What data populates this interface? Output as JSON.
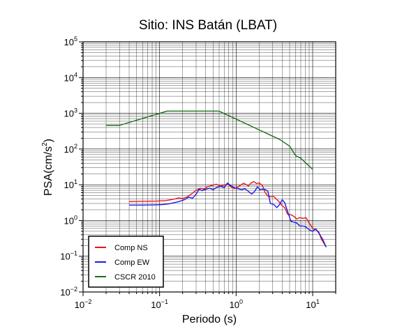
{
  "chart_data": {
    "type": "line",
    "title": "Sitio: INS Batán (LBAT)",
    "xlabel": "Periodo (s)",
    "ylabel_base": "PSA(cm/s",
    "ylabel_exp": "2",
    "ylabel_close": ")",
    "xscale": "log",
    "yscale": "log",
    "xlim": [
      0.01,
      20
    ],
    "ylim": [
      0.01,
      100000
    ],
    "grid": true,
    "legend_position": "bottom-left",
    "x_ticks": [
      {
        "value": 0.01,
        "base": "10",
        "exp": "−2"
      },
      {
        "value": 0.1,
        "base": "10",
        "exp": "−1"
      },
      {
        "value": 1,
        "base": "10",
        "exp": "0"
      },
      {
        "value": 10,
        "base": "10",
        "exp": "1"
      }
    ],
    "y_ticks": [
      {
        "value": 0.01,
        "base": "10",
        "exp": "−2"
      },
      {
        "value": 0.1,
        "base": "10",
        "exp": "−1"
      },
      {
        "value": 1,
        "base": "10",
        "exp": "0"
      },
      {
        "value": 10,
        "base": "10",
        "exp": "1"
      },
      {
        "value": 100,
        "base": "10",
        "exp": "2"
      },
      {
        "value": 1000,
        "base": "10",
        "exp": "3"
      },
      {
        "value": 10000,
        "base": "10",
        "exp": "4"
      },
      {
        "value": 100000,
        "base": "10",
        "exp": "5"
      }
    ],
    "series": [
      {
        "name": "Comp NS",
        "color": "#e8141a",
        "points": [
          [
            0.04,
            3.4
          ],
          [
            0.06,
            3.45
          ],
          [
            0.09,
            3.5
          ],
          [
            0.12,
            3.6
          ],
          [
            0.15,
            3.9
          ],
          [
            0.18,
            4.3
          ],
          [
            0.2,
            4.1
          ],
          [
            0.23,
            4.6
          ],
          [
            0.26,
            5.5
          ],
          [
            0.3,
            7.0
          ],
          [
            0.34,
            8.0
          ],
          [
            0.38,
            7.5
          ],
          [
            0.42,
            8.8
          ],
          [
            0.48,
            9.5
          ],
          [
            0.55,
            10.4
          ],
          [
            0.62,
            9.2
          ],
          [
            0.7,
            9.8
          ],
          [
            0.78,
            10.5
          ],
          [
            0.85,
            8.8
          ],
          [
            0.95,
            7.8
          ],
          [
            1.05,
            8.6
          ],
          [
            1.15,
            9.8
          ],
          [
            1.25,
            11.0
          ],
          [
            1.35,
            10.2
          ],
          [
            1.45,
            9.2
          ],
          [
            1.55,
            11.0
          ],
          [
            1.7,
            12.3
          ],
          [
            1.85,
            10.8
          ],
          [
            2.0,
            11.3
          ],
          [
            2.2,
            9.5
          ],
          [
            2.4,
            6.0
          ],
          [
            2.6,
            4.8
          ],
          [
            2.85,
            4.6
          ],
          [
            3.1,
            4.7
          ],
          [
            3.4,
            3.9
          ],
          [
            3.7,
            3.2
          ],
          [
            4.0,
            2.6
          ],
          [
            4.3,
            2.3
          ],
          [
            4.7,
            1.5
          ],
          [
            5.2,
            1.45
          ],
          [
            5.7,
            1.3
          ],
          [
            6.2,
            1.1
          ],
          [
            6.7,
            1.2
          ],
          [
            7.5,
            1.15
          ],
          [
            8.2,
            1.2
          ],
          [
            9.0,
            0.85
          ],
          [
            10.0,
            0.6
          ],
          [
            11.0,
            0.55
          ],
          [
            12.0,
            0.48
          ],
          [
            13.0,
            0.3
          ],
          [
            15.0,
            0.18
          ]
        ]
      },
      {
        "name": "Comp EW",
        "color": "#1a1ae6",
        "points": [
          [
            0.04,
            2.7
          ],
          [
            0.06,
            2.7
          ],
          [
            0.09,
            2.75
          ],
          [
            0.11,
            2.8
          ],
          [
            0.13,
            2.9
          ],
          [
            0.15,
            3.1
          ],
          [
            0.18,
            3.4
          ],
          [
            0.21,
            3.8
          ],
          [
            0.24,
            4.5
          ],
          [
            0.27,
            4.2
          ],
          [
            0.3,
            5.5
          ],
          [
            0.33,
            7.5
          ],
          [
            0.36,
            6.8
          ],
          [
            0.4,
            7.5
          ],
          [
            0.45,
            8.0
          ],
          [
            0.5,
            7.3
          ],
          [
            0.56,
            8.5
          ],
          [
            0.63,
            9.0
          ],
          [
            0.7,
            8.3
          ],
          [
            0.77,
            11.2
          ],
          [
            0.85,
            9.5
          ],
          [
            0.92,
            8.5
          ],
          [
            1.0,
            8.0
          ],
          [
            1.1,
            7.6
          ],
          [
            1.2,
            7.3
          ],
          [
            1.3,
            7.8
          ],
          [
            1.45,
            6.5
          ],
          [
            1.6,
            5.5
          ],
          [
            1.75,
            6.6
          ],
          [
            1.9,
            8.8
          ],
          [
            2.05,
            7.2
          ],
          [
            2.2,
            7.5
          ],
          [
            2.4,
            7.4
          ],
          [
            2.6,
            6.5
          ],
          [
            2.8,
            3.0
          ],
          [
            3.1,
            2.8
          ],
          [
            3.4,
            2.3
          ],
          [
            3.7,
            2.8
          ],
          [
            4.0,
            3.8
          ],
          [
            4.3,
            3.2
          ],
          [
            4.7,
            1.8
          ],
          [
            5.2,
            0.95
          ],
          [
            5.7,
            0.9
          ],
          [
            6.2,
            0.85
          ],
          [
            6.8,
            0.7
          ],
          [
            7.4,
            0.7
          ],
          [
            8.0,
            0.68
          ],
          [
            9.0,
            0.55
          ],
          [
            10.0,
            0.5
          ],
          [
            11.0,
            0.58
          ],
          [
            12.0,
            0.45
          ],
          [
            13.5,
            0.3
          ],
          [
            15.0,
            0.18
          ]
        ]
      },
      {
        "name": "CSCR 2010",
        "color": "#1a6e1a",
        "points": [
          [
            0.02,
            460
          ],
          [
            0.03,
            460
          ],
          [
            0.125,
            1150
          ],
          [
            0.6,
            1150
          ],
          [
            3.8,
            180
          ],
          [
            5.0,
            120
          ],
          [
            6.0,
            65
          ],
          [
            7.0,
            55
          ],
          [
            8.0,
            42
          ],
          [
            10.0,
            27
          ]
        ]
      }
    ]
  }
}
